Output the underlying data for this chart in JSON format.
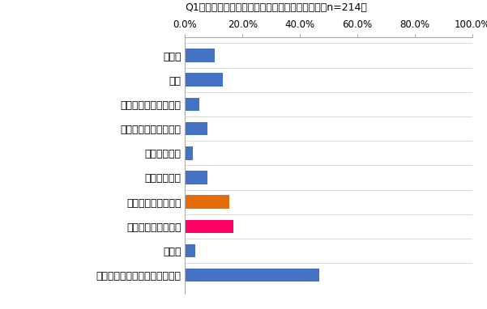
{
  "title": "Q1「唇」の形にコンプレックスはありますか？（n=214）",
  "categories": [
    "分厚い",
    "薄い",
    "上唇が厚く下唇が薄い",
    "上唇が薄く下唇が厚い",
    "横幅が大きい",
    "横幅が小さい",
    "口角が下がっている",
    "輪郭がぼやけている",
    "その他",
    "唇の形にコンプレックスはない"
  ],
  "values": [
    10.3,
    13.1,
    5.1,
    7.9,
    2.8,
    7.9,
    15.4,
    16.8,
    3.7,
    46.7
  ],
  "colors": [
    "#4472c4",
    "#4472c4",
    "#4472c4",
    "#4472c4",
    "#4472c4",
    "#4472c4",
    "#e36c09",
    "#ff0066",
    "#4472c4",
    "#4472c4"
  ],
  "xlim": [
    0,
    100
  ],
  "xticks": [
    0,
    20,
    40,
    60,
    80,
    100
  ],
  "xticklabels": [
    "0.0%",
    "20.0%",
    "40.0%",
    "60.0%",
    "80.0%",
    "100.0%"
  ],
  "background_color": "#ffffff",
  "border_color": "#d0d0d0",
  "title_fontsize": 9,
  "label_fontsize": 9,
  "tick_fontsize": 8.5,
  "bar_height": 0.55
}
